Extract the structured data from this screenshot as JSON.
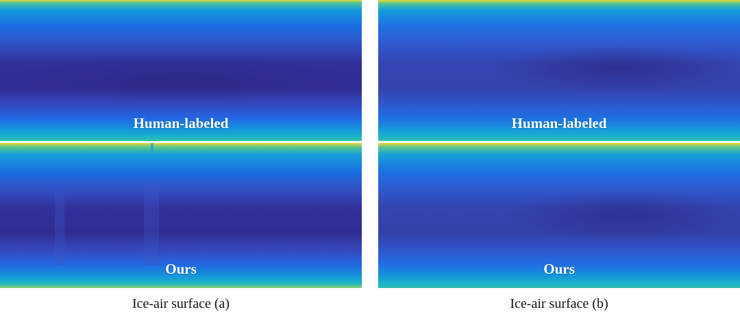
{
  "figure": {
    "columns": [
      {
        "caption": "Ice-air surface (a)",
        "panels": [
          {
            "label": "Human-labeled"
          },
          {
            "label": "Ours"
          }
        ]
      },
      {
        "caption": "Ice-air surface (b)",
        "panels": [
          {
            "label": "Human-labeled"
          },
          {
            "label": "Ours"
          }
        ]
      }
    ],
    "colors": {
      "colormap": "parula",
      "deep": "#2f2a8f",
      "dark_blue": "#3b3fb8",
      "blue": "#1f6fe0",
      "cyan": "#13a8d6",
      "teal": "#22c0a0",
      "yellow": "#e9d83a"
    }
  }
}
